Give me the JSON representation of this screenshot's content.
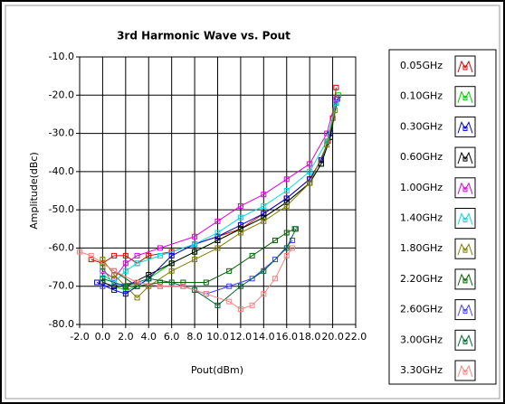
{
  "chart_data": {
    "type": "line",
    "title": "3rd Harmonic Wave vs. Pout",
    "x_label": "Pout(dBm)",
    "y_label": "Amplitude(dBc)",
    "grid": true,
    "legend": "right",
    "xlim": [
      -2,
      22
    ],
    "ylim": [
      -80,
      -10
    ],
    "xticks": [
      {
        "value": -2,
        "label": "-2.0"
      },
      {
        "value": 0,
        "label": "0.0"
      },
      {
        "value": 2,
        "label": "2.0"
      },
      {
        "value": 4,
        "label": "4.0"
      },
      {
        "value": 6,
        "label": "6.0"
      },
      {
        "value": 8,
        "label": "8.0"
      },
      {
        "value": 10,
        "label": "10.0"
      },
      {
        "value": 12,
        "label": "12.0"
      },
      {
        "value": 14,
        "label": "14.0"
      },
      {
        "value": 16,
        "label": "16.0"
      },
      {
        "value": 18,
        "label": "18.0"
      },
      {
        "value": 20,
        "label": "20.0"
      },
      {
        "value": 22,
        "label": "22.0"
      }
    ],
    "yticks": [
      {
        "value": -10,
        "label": "-10.0"
      },
      {
        "value": -20,
        "label": "-20.0"
      },
      {
        "value": -30,
        "label": "-30.0"
      },
      {
        "value": -40,
        "label": "-40.0"
      },
      {
        "value": -50,
        "label": "-50.0"
      },
      {
        "value": -60,
        "label": "-60.0"
      },
      {
        "value": -70,
        "label": "-70.0"
      },
      {
        "value": -80,
        "label": "-80.0"
      }
    ],
    "series": [
      {
        "name": "0.05GHz",
        "color": "#e00000",
        "x": [
          -1,
          0,
          1,
          2,
          3,
          4,
          6,
          8,
          10,
          12,
          14,
          16,
          18,
          19,
          19.6,
          20,
          20.3
        ],
        "values": [
          -63,
          -64,
          -62,
          -62,
          -64,
          -62,
          -61,
          -59,
          -57,
          -55,
          -51,
          -47,
          -42,
          -37,
          -32,
          -26,
          -18
        ]
      },
      {
        "name": "0.10GHz",
        "color": "#00cc00",
        "x": [
          0,
          1,
          2,
          3,
          4,
          6,
          8,
          10,
          12,
          14,
          16,
          18,
          19,
          19.8,
          20.5
        ],
        "values": [
          -65,
          -70,
          -71,
          -70,
          -68,
          -64,
          -61,
          -58,
          -55,
          -52,
          -48,
          -43,
          -38,
          -31,
          -20
        ]
      },
      {
        "name": "0.30GHz",
        "color": "#0000dd",
        "x": [
          -0.5,
          1,
          2,
          3,
          4,
          6,
          8,
          10,
          12,
          14,
          16,
          18,
          19,
          19.8,
          20.4
        ],
        "values": [
          -69,
          -71,
          -72,
          -70,
          -68,
          -62,
          -59,
          -57,
          -54,
          -51,
          -47,
          -42,
          -37,
          -30,
          -21
        ]
      },
      {
        "name": "0.60GHz",
        "color": "#000000",
        "x": [
          0,
          1,
          2,
          4,
          6,
          8,
          10,
          12,
          14,
          16,
          18,
          19,
          19.8,
          20.3
        ],
        "values": [
          -69,
          -70,
          -70,
          -67,
          -64,
          -61,
          -58,
          -55,
          -52,
          -48,
          -43,
          -38,
          -31,
          -22
        ]
      },
      {
        "name": "1.00GHz",
        "color": "#dd00dd",
        "x": [
          0,
          1,
          2,
          3,
          5,
          8,
          10,
          12,
          14,
          16,
          18,
          19.5,
          20.3
        ],
        "values": [
          -66,
          -68,
          -64,
          -62,
          -60,
          -57,
          -53,
          -49,
          -46,
          -42,
          -38,
          -30,
          -21
        ]
      },
      {
        "name": "1.40GHz",
        "color": "#00dddd",
        "x": [
          0,
          1,
          2,
          3,
          5,
          8,
          10,
          12,
          14,
          16,
          18,
          19.5,
          20.3
        ],
        "values": [
          -67,
          -69,
          -66,
          -64,
          -62,
          -59,
          -56,
          -52,
          -49,
          -45,
          -40,
          -32,
          -22
        ]
      },
      {
        "name": "1.80GHz",
        "color": "#808000",
        "x": [
          0,
          1,
          2,
          3,
          4,
          6,
          8,
          10,
          12,
          14,
          16,
          18,
          19.5,
          20.2
        ],
        "values": [
          -63,
          -67,
          -70,
          -73,
          -70,
          -66,
          -63,
          -60,
          -56,
          -53,
          -49,
          -43,
          -33,
          -24
        ]
      },
      {
        "name": "2.20GHz",
        "color": "#006600",
        "x": [
          1,
          3,
          5,
          7,
          9,
          11,
          13,
          15,
          16,
          16.7
        ],
        "values": [
          -66,
          -70,
          -69,
          -69,
          -69,
          -66,
          -62,
          -58,
          -56,
          -55
        ]
      },
      {
        "name": "2.60GHz",
        "color": "#4040ff",
        "x": [
          0,
          3,
          5,
          7,
          9,
          11,
          13,
          15,
          16.5
        ],
        "values": [
          -70,
          -69,
          -70,
          -70,
          -72,
          -70,
          -68,
          -63,
          -58
        ]
      },
      {
        "name": "3.00GHz",
        "color": "#006633",
        "x": [
          0,
          2,
          4,
          6,
          8,
          10,
          12,
          14,
          16,
          16.8
        ],
        "values": [
          -68,
          -70,
          -68,
          -69,
          -71,
          -75,
          -70,
          -66,
          -60,
          -55
        ]
      },
      {
        "name": "3.30GHz",
        "color": "#ff8080",
        "x": [
          -2,
          -1,
          1,
          3,
          5,
          7,
          9,
          11,
          12,
          13,
          14,
          15,
          16,
          16.5
        ],
        "values": [
          -61,
          -62,
          -66,
          -69,
          -70,
          -70,
          -72,
          -74,
          -76,
          -75,
          -72,
          -68,
          -62,
          -60
        ]
      }
    ]
  }
}
